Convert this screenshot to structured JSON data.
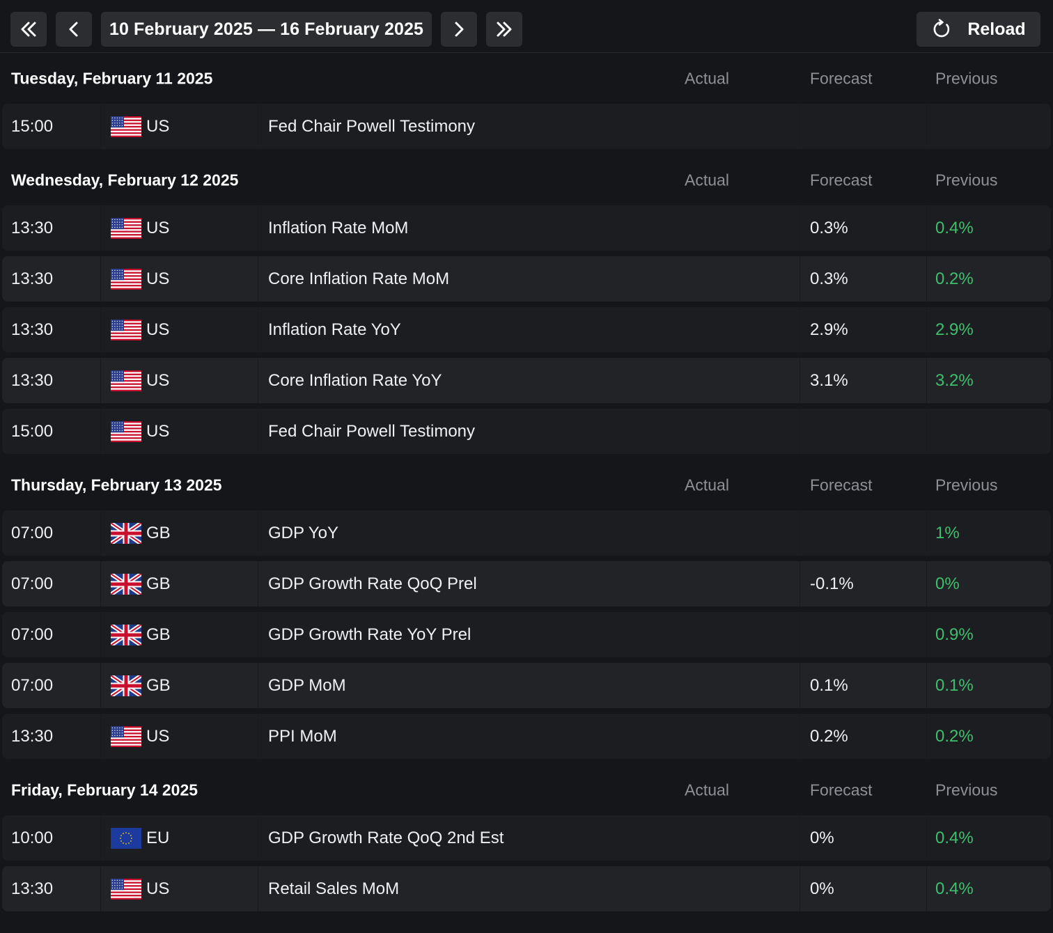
{
  "toolbar": {
    "first_icon": "double-chevron-left-icon",
    "prev_icon": "chevron-left-icon",
    "date_range": "10 February 2025 — 16 February 2025",
    "next_icon": "chevron-right-icon",
    "last_icon": "double-chevron-right-icon",
    "reload_icon": "refresh-icon",
    "reload_label": "Reload"
  },
  "columns": {
    "actual": "Actual",
    "forecast": "Forecast",
    "previous": "Previous"
  },
  "colors": {
    "positive": "#3fbf6d",
    "background": "#151619",
    "row": "#1c1d20",
    "row_alt": "#222326"
  },
  "days": [
    {
      "title": "Tuesday, February 11 2025",
      "events": [
        {
          "time": "15:00",
          "flag": "us",
          "country": "US",
          "event": "Fed Chair Powell Testimony",
          "actual": "",
          "forecast": "",
          "previous": ""
        }
      ]
    },
    {
      "title": "Wednesday, February 12 2025",
      "events": [
        {
          "time": "13:30",
          "flag": "us",
          "country": "US",
          "event": "Inflation Rate MoM",
          "actual": "",
          "forecast": "0.3%",
          "previous": "0.4%"
        },
        {
          "time": "13:30",
          "flag": "us",
          "country": "US",
          "event": "Core Inflation Rate MoM",
          "actual": "",
          "forecast": "0.3%",
          "previous": "0.2%"
        },
        {
          "time": "13:30",
          "flag": "us",
          "country": "US",
          "event": "Inflation Rate YoY",
          "actual": "",
          "forecast": "2.9%",
          "previous": "2.9%"
        },
        {
          "time": "13:30",
          "flag": "us",
          "country": "US",
          "event": "Core Inflation Rate YoY",
          "actual": "",
          "forecast": "3.1%",
          "previous": "3.2%"
        },
        {
          "time": "15:00",
          "flag": "us",
          "country": "US",
          "event": "Fed Chair Powell Testimony",
          "actual": "",
          "forecast": "",
          "previous": ""
        }
      ]
    },
    {
      "title": "Thursday, February 13 2025",
      "events": [
        {
          "time": "07:00",
          "flag": "gb",
          "country": "GB",
          "event": "GDP YoY",
          "actual": "",
          "forecast": "",
          "previous": "1%"
        },
        {
          "time": "07:00",
          "flag": "gb",
          "country": "GB",
          "event": "GDP Growth Rate QoQ Prel",
          "actual": "",
          "forecast": "-0.1%",
          "previous": "0%"
        },
        {
          "time": "07:00",
          "flag": "gb",
          "country": "GB",
          "event": "GDP Growth Rate YoY Prel",
          "actual": "",
          "forecast": "",
          "previous": "0.9%"
        },
        {
          "time": "07:00",
          "flag": "gb",
          "country": "GB",
          "event": "GDP MoM",
          "actual": "",
          "forecast": "0.1%",
          "previous": "0.1%"
        },
        {
          "time": "13:30",
          "flag": "us",
          "country": "US",
          "event": "PPI MoM",
          "actual": "",
          "forecast": "0.2%",
          "previous": "0.2%"
        }
      ]
    },
    {
      "title": "Friday, February 14 2025",
      "events": [
        {
          "time": "10:00",
          "flag": "eu",
          "country": "EU",
          "event": "GDP Growth Rate QoQ 2nd Est",
          "actual": "",
          "forecast": "0%",
          "previous": "0.4%"
        },
        {
          "time": "13:30",
          "flag": "us",
          "country": "US",
          "event": "Retail Sales MoM",
          "actual": "",
          "forecast": "0%",
          "previous": "0.4%"
        }
      ]
    }
  ]
}
